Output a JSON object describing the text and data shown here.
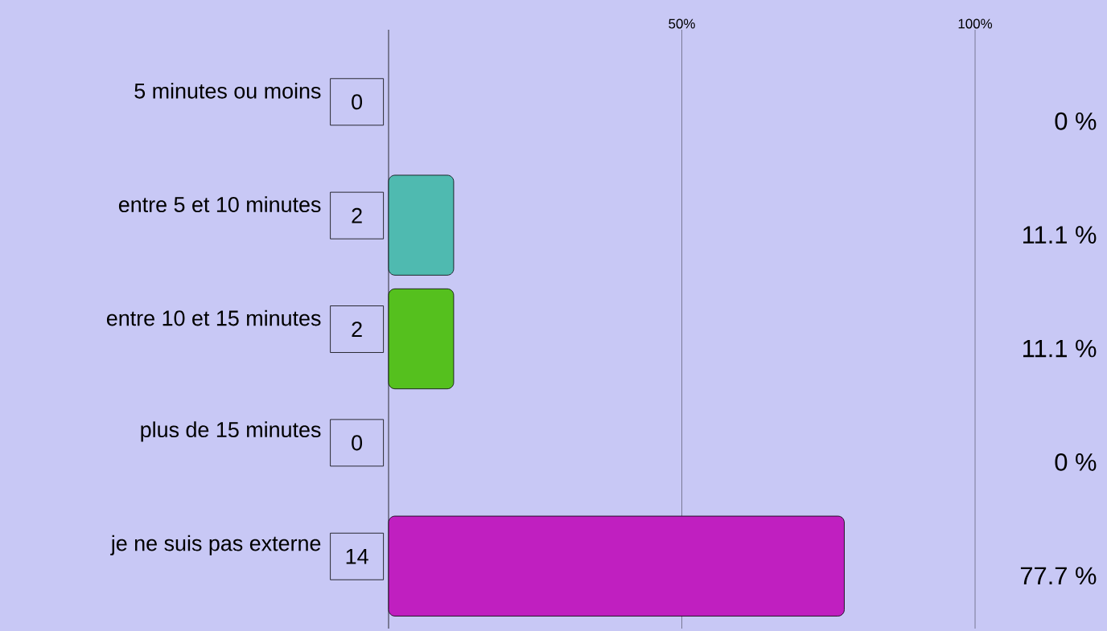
{
  "chart_data": {
    "type": "bar",
    "orientation": "horizontal",
    "categories": [
      "5 minutes ou moins",
      "entre 5 et 10 minutes",
      "entre 10 et 15 minutes",
      "plus de 15 minutes",
      "je ne suis pas externe"
    ],
    "values": [
      0,
      11.1,
      11.1,
      0,
      77.7
    ],
    "colors": [
      "#4fbab0",
      "#4fbab0",
      "#55c01e",
      "#c01fc0",
      "#c01fc0"
    ],
    "value_labels": [
      "0 %",
      "11.1 %",
      "11.1 %",
      "0 %",
      "77.7 %"
    ],
    "annotations": [
      "0",
      "2",
      "2",
      "0",
      "14"
    ],
    "xlim": [
      0,
      100
    ],
    "xticks": [
      {
        "value": 50,
        "label": "50%"
      },
      {
        "value": 100,
        "label": "100%"
      }
    ],
    "grid": "x"
  }
}
